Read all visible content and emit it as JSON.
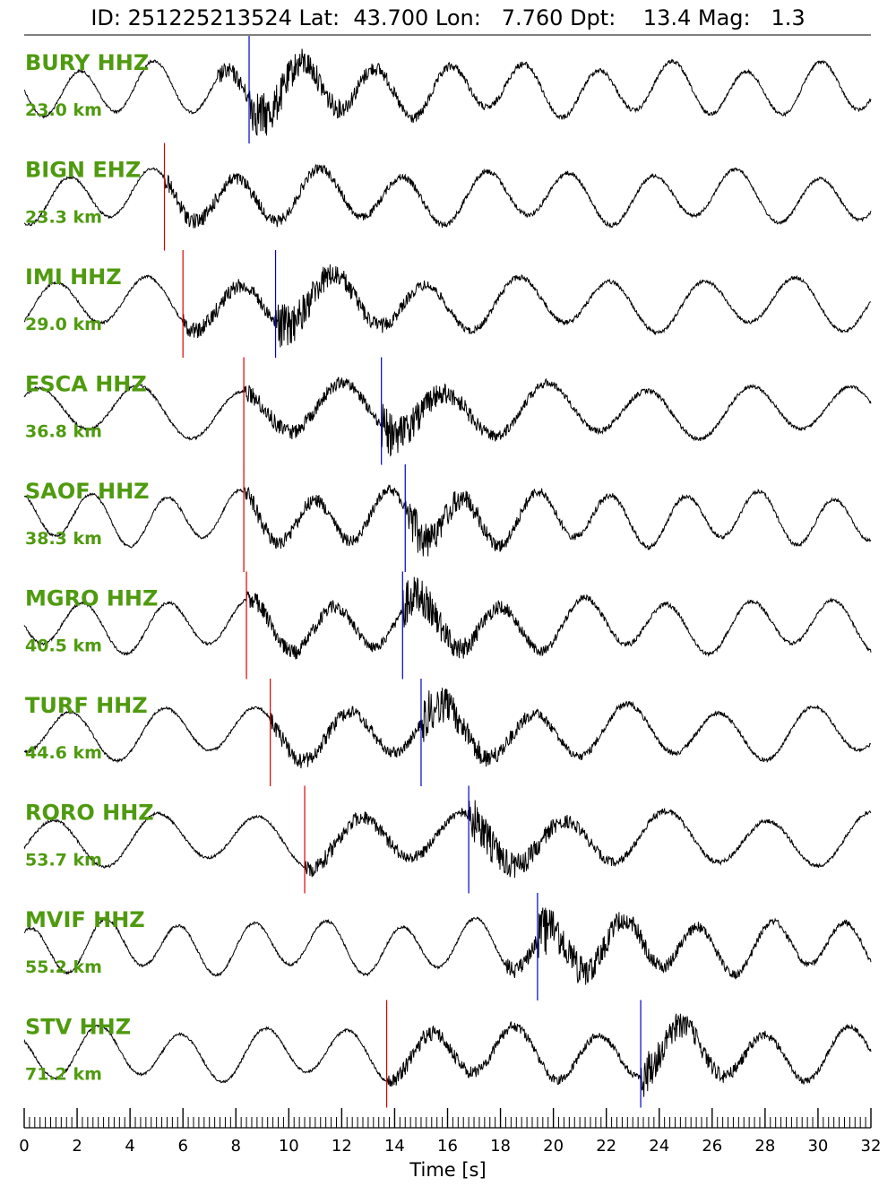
{
  "chart_data": {
    "type": "line",
    "title": "ID: 251225213524 Lat:  43.700 Lon:   7.760 Dpt:    13.4 Mag:   1.3",
    "xlabel": "Time [s]",
    "ylabel": "",
    "xlim": [
      0,
      32
    ],
    "x_ticks": [
      "0",
      "2",
      "4",
      "6",
      "8",
      "10",
      "12",
      "14",
      "16",
      "18",
      "20",
      "22",
      "24",
      "26",
      "28",
      "30",
      "32"
    ],
    "grid": false,
    "legend": "none",
    "pick_colors": {
      "P": "#dd0000",
      "S": "#0000cc"
    },
    "label_color": "#4f9a0f",
    "series": [
      {
        "name": "BURY HHZ",
        "distance": "23.0 km",
        "p_pick": null,
        "s_pick": 8.5
      },
      {
        "name": "BIGN EHZ",
        "distance": "23.3 km",
        "p_pick": 5.3,
        "s_pick": null
      },
      {
        "name": "IMI HHZ",
        "distance": "29.0 km",
        "p_pick": 6.0,
        "s_pick": 9.5
      },
      {
        "name": "ESCA HHZ",
        "distance": "36.8 km",
        "p_pick": 8.3,
        "s_pick": 13.5
      },
      {
        "name": "SAOF HHZ",
        "distance": "38.3 km",
        "p_pick": 8.3,
        "s_pick": 14.4
      },
      {
        "name": "MGRO HHZ",
        "distance": "40.5 km",
        "p_pick": 8.4,
        "s_pick": 14.3
      },
      {
        "name": "TURF HHZ",
        "distance": "44.6 km",
        "p_pick": 9.3,
        "s_pick": 15.0
      },
      {
        "name": "RORO HHZ",
        "distance": "53.7 km",
        "p_pick": 10.6,
        "s_pick": 16.8
      },
      {
        "name": "MVIF HHZ",
        "distance": "55.2 km",
        "p_pick": null,
        "s_pick": 19.4
      },
      {
        "name": "STV HHZ",
        "distance": "71.2 km",
        "p_pick": 13.7,
        "s_pick": 23.3
      }
    ]
  }
}
